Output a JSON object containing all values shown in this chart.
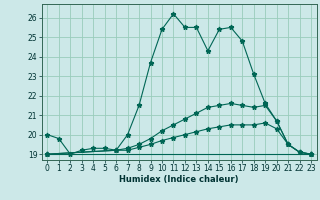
{
  "xlabel": "Humidex (Indice chaleur)",
  "background_color": "#cce8e8",
  "grid_color": "#99ccbb",
  "line_color": "#006655",
  "xlim": [
    -0.5,
    23.5
  ],
  "ylim": [
    18.7,
    26.7
  ],
  "yticks": [
    19,
    20,
    21,
    22,
    23,
    24,
    25,
    26
  ],
  "xticks": [
    0,
    1,
    2,
    3,
    4,
    5,
    6,
    7,
    8,
    9,
    10,
    11,
    12,
    13,
    14,
    15,
    16,
    17,
    18,
    19,
    20,
    21,
    22,
    23
  ],
  "series": [
    {
      "x": [
        0,
        1,
        2,
        3,
        4,
        5,
        6,
        7,
        8,
        9,
        10,
        11,
        12,
        13,
        14,
        15,
        16,
        17,
        18,
        19,
        20,
        21,
        22,
        23
      ],
      "y": [
        20.0,
        19.8,
        19.0,
        19.2,
        19.3,
        19.3,
        19.2,
        20.0,
        21.5,
        23.7,
        25.4,
        26.2,
        25.5,
        25.5,
        24.3,
        25.4,
        25.5,
        24.8,
        23.1,
        21.6,
        20.7,
        19.5,
        19.1,
        19.0
      ]
    },
    {
      "x": [
        0,
        6,
        7,
        8,
        9,
        10,
        11,
        12,
        13,
        14,
        15,
        16,
        17,
        18,
        19,
        20,
        21,
        22,
        23
      ],
      "y": [
        19.0,
        19.2,
        19.3,
        19.5,
        19.8,
        20.2,
        20.5,
        20.8,
        21.1,
        21.4,
        21.5,
        21.6,
        21.5,
        21.4,
        21.5,
        20.7,
        19.5,
        19.1,
        19.0
      ]
    },
    {
      "x": [
        0,
        6,
        7,
        8,
        9,
        10,
        11,
        12,
        13,
        14,
        15,
        16,
        17,
        18,
        19,
        20,
        21,
        22,
        23
      ],
      "y": [
        19.0,
        19.2,
        19.2,
        19.35,
        19.5,
        19.7,
        19.85,
        20.0,
        20.15,
        20.3,
        20.4,
        20.5,
        20.5,
        20.5,
        20.6,
        20.3,
        19.5,
        19.1,
        19.0
      ]
    },
    {
      "x": [
        0,
        23
      ],
      "y": [
        19.0,
        19.0
      ]
    }
  ]
}
